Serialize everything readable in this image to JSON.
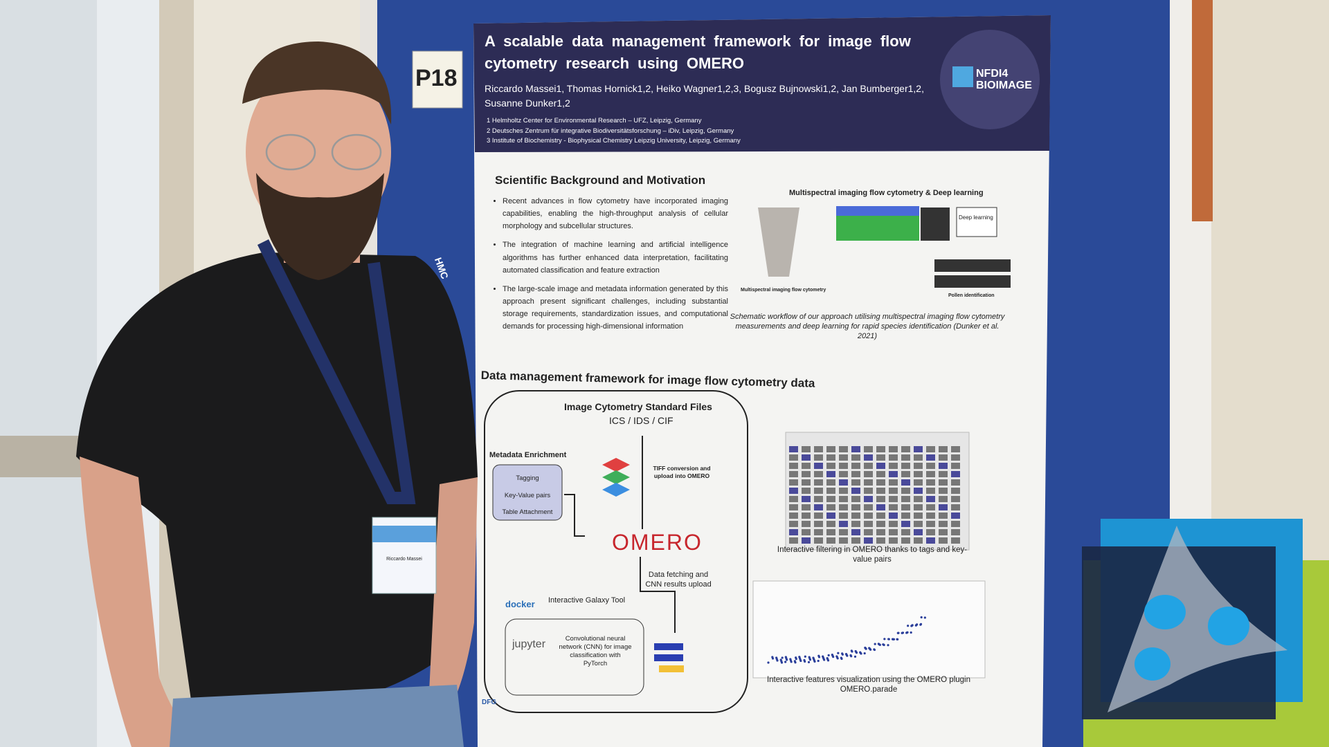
{
  "sign": "P18",
  "lanyard": "HMC",
  "badge": {
    "name": "Riccardo Massei"
  },
  "poster": {
    "title": "A scalable data management framework for image flow cytometry research using OMERO",
    "authors": "Riccardo Massei1, Thomas Hornick1,2, Heiko Wagner1,2,3, Bogusz Bujnowski1,2, Jan Bumberger1,2, Susanne Dunker1,2",
    "affiliations": [
      "1 Helmholtz Center for Environmental Research – UFZ, Leipzig, Germany",
      "2 Deutsches Zentrum für integrative Biodiversitätsforschung – iDiv, Leipzig, Germany",
      "3 Institute of Biochemistry - Biophysical Chemistry Leipzig University, Leipzig, Germany"
    ],
    "logo": {
      "line1": "NFDI4",
      "line2": "BIOIMAGE"
    },
    "background": {
      "heading": "Scientific Background and Motivation",
      "bullets": [
        "Recent advances in flow cytometry have incorporated imaging capabilities, enabling the high-throughput analysis of cellular morphology and subcellular structures.",
        "The integration of machine learning and artificial intelligence algorithms has further enhanced data interpretation, facilitating automated classification and feature extraction",
        "The large-scale image and metadata information generated by this approach present significant challenges, including substantial storage requirements, standardization issues, and computational demands for processing high-dimensional information"
      ]
    },
    "figure": {
      "title": "Multispectral imaging flow cytometry & Deep learning",
      "left_label": "Multispectral imaging flow cytometry",
      "box_label": "Deep learning",
      "right_label": "Pollen identification",
      "caption": "Schematic workflow of our approach utilising multispectral imaging flow cytometry measurements and deep learning for rapid species identification (Dunker et al. 2021)"
    },
    "framework": {
      "heading": "Data management framework for image flow cytometry data",
      "files_title": "Image Cytometry Standard Files",
      "files_formats": "ICS / IDS / CIF",
      "metadata_title": "Metadata Enrichment",
      "metadata_items": [
        "Tagging",
        "Key-Value pairs",
        "Table Attachment"
      ],
      "tiff_note": "TIFF conversion and upload into OMERO",
      "omero": "OMERO",
      "fetch_note": "Data fetching and CNN results upload",
      "docker": "docker",
      "galaxy": "Interactive Galaxy Tool",
      "jupyter": "jupyter",
      "cnn_note": "Convolutional neural network (CNN) for image classification with PyTorch",
      "filtering_caption": "Interactive filtering in OMERO thanks to tags and key-value pairs",
      "visualization_caption": "Interactive features visualization using the OMERO plugin OMERO.parade",
      "funder": "DFG"
    }
  }
}
